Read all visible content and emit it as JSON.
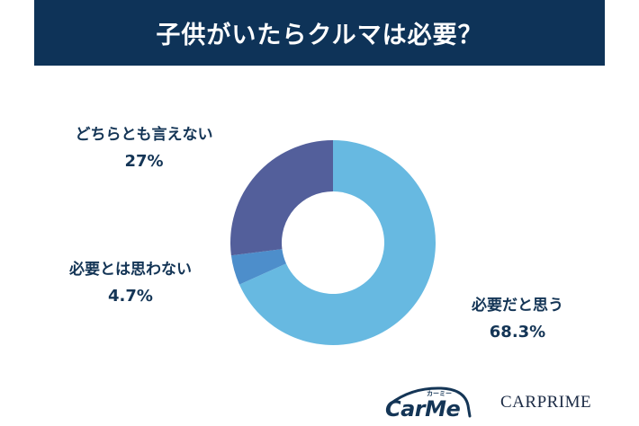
{
  "header": {
    "title": "子供がいたらクルマは必要？"
  },
  "colors": {
    "header_bg": "#0e3358",
    "label_text": "#143556",
    "yes": "#67b9e1",
    "no": "#4d8ecb",
    "neutral": "#535f9b"
  },
  "labels": {
    "neutral": {
      "text": "どちらとも言えない",
      "pct": "27%"
    },
    "no": {
      "text": "必要とは思わない",
      "pct": "4.7%"
    },
    "yes": {
      "text": "必要だと思う",
      "pct": "68.3%"
    }
  },
  "logos": {
    "carme": "CarMe",
    "carme_kana": "カーミー",
    "carprime": "CARPRIME"
  },
  "chart_data": {
    "type": "pie",
    "subtype": "donut",
    "title": "子供がいたらクルマは必要？",
    "categories": [
      "必要だと思う",
      "必要とは思わない",
      "どちらとも言えない"
    ],
    "values": [
      68.3,
      4.7,
      27
    ],
    "unit": "%",
    "colors": [
      "#67b9e1",
      "#4d8ecb",
      "#535f9b"
    ],
    "start_angle": "12 o'clock, clockwise",
    "legend": "none (direct labels)"
  }
}
